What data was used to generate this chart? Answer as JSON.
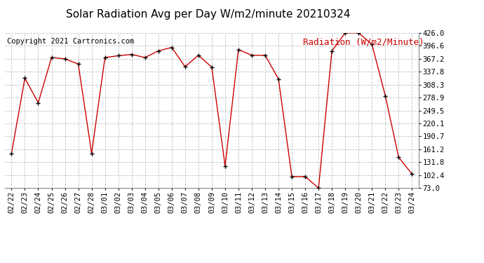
{
  "title": "Solar Radiation Avg per Day W/m2/minute 20210324",
  "copyright": "Copyright 2021 Cartronics.com",
  "legend_label": "Radiation (W/m2/Minute)",
  "dates": [
    "02/22",
    "02/23",
    "02/24",
    "02/25",
    "02/26",
    "02/27",
    "02/28",
    "03/01",
    "03/02",
    "03/03",
    "03/04",
    "03/05",
    "03/06",
    "03/07",
    "03/08",
    "03/09",
    "03/10",
    "03/11",
    "03/12",
    "03/13",
    "03/14",
    "03/15",
    "03/16",
    "03/17",
    "03/18",
    "03/19",
    "03/20",
    "03/21",
    "03/22",
    "03/23",
    "03/24"
  ],
  "values": [
    152.0,
    323.0,
    267.0,
    370.0,
    367.0,
    355.0,
    152.0,
    370.0,
    374.0,
    377.0,
    370.0,
    385.0,
    393.0,
    349.0,
    375.0,
    348.0,
    123.0,
    388.0,
    375.0,
    375.0,
    321.0,
    99.0,
    99.0,
    73.0,
    385.0,
    426.0,
    426.0,
    400.0,
    283.0,
    143.0,
    105.0
  ],
  "ylim_min": 73.0,
  "ylim_max": 426.0,
  "yticks": [
    73.0,
    102.4,
    131.8,
    161.2,
    190.7,
    220.1,
    249.5,
    278.9,
    308.3,
    337.8,
    367.2,
    396.6,
    426.0
  ],
  "line_color": "#cc0000",
  "marker_color": "#000000",
  "bg_color": "#ffffff",
  "grid_color": "#c0c0c0",
  "title_fontsize": 11,
  "copyright_fontsize": 7.5,
  "legend_fontsize": 9,
  "tick_fontsize": 7.5
}
